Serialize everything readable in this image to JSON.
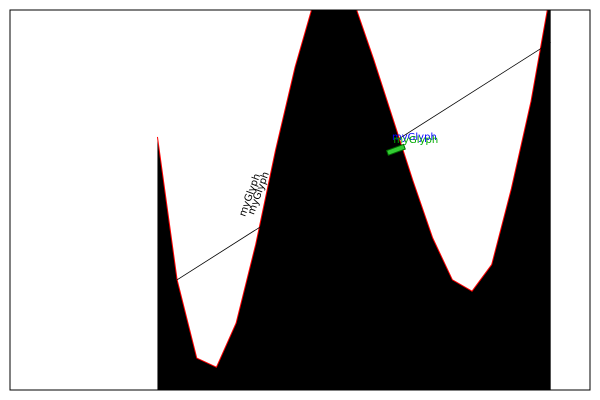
{
  "chart_data": {
    "type": "area",
    "x": [
      0,
      1,
      2,
      3,
      4,
      5,
      6,
      7,
      8,
      9,
      10,
      11,
      12,
      13,
      14,
      15,
      16,
      17,
      18,
      19,
      20
    ],
    "values": [
      6.66,
      2.9,
      0.84,
      0.6,
      1.76,
      3.84,
      6.3,
      8.5,
      10.3,
      10.8,
      10.2,
      8.7,
      7.1,
      5.5,
      4.0,
      2.9,
      2.6,
      3.3,
      5.3,
      7.6,
      10.5
    ],
    "color": "#000000",
    "edge_color": "#ff0000",
    "line": {
      "x": [
        1,
        20
      ],
      "values": [
        2.9,
        9.15
      ],
      "color": "#000000"
    },
    "glyph": {
      "x": 12.13,
      "y": 6.32,
      "color": "#33cc33"
    },
    "annotations": [
      {
        "text": "myGlyph",
        "x": 11.93,
        "y": 6.58,
        "color": "#0000ff",
        "rotation": 0
      },
      {
        "text": "myGlyph",
        "x": 12.0,
        "y": 6.5,
        "color": "#00aa00",
        "rotation": 0
      },
      {
        "text": "myGlyph",
        "x": 4.45,
        "y": 4.55,
        "color": "#000000",
        "rotation": -70
      },
      {
        "text": "myGlyph",
        "x": 4.9,
        "y": 4.6,
        "color": "#000000",
        "rotation": -70
      }
    ],
    "xlim": [
      -7.5,
      22
    ],
    "ylim": [
      0,
      10
    ]
  }
}
